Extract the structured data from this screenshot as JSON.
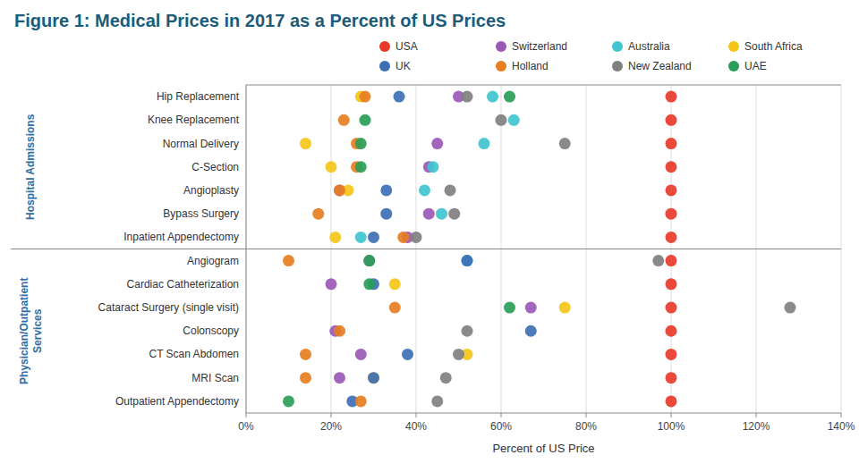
{
  "chart_data": {
    "type": "dot",
    "title": "Figure 1: Medical Prices in 2017 as a Percent of US Prices",
    "x_label": "Percent of US Price",
    "categories": [
      "Hip Replacement",
      "Knee Replacement",
      "Normal Delivery",
      "C-Section",
      "Angioplasty",
      "Bypass Surgery",
      "Inpatient Appendectomy",
      "Angiogram",
      "Cardiac Catheterization",
      "Cataract Surgery (single visit)",
      "Colonscopy",
      "CT Scan Abdomen",
      "MRI Scan",
      "Outpatient Appendectomy"
    ],
    "groups": [
      {
        "label": "Hospital Admissions",
        "categories": [
          "Hip Replacement",
          "Knee Replacement",
          "Normal Delivery",
          "C-Section",
          "Angioplasty",
          "Bypass Surgery",
          "Inpatient Appendectomy"
        ]
      },
      {
        "label": "Physician/Outpatient\nServices",
        "categories": [
          "Angiogram",
          "Cardiac Catheterization",
          "Cataract Surgery (single visit)",
          "Colonscopy",
          "CT Scan Abdomen",
          "MRI Scan",
          "Outpatient Appendectomy"
        ]
      }
    ],
    "series": [
      {
        "name": "USA",
        "color": "#e8392a",
        "values": [
          1.0,
          1.0,
          1.0,
          1.0,
          1.0,
          1.0,
          1.0,
          1.0,
          1.0,
          1.0,
          1.0,
          1.0,
          1.0,
          1.0
        ]
      },
      {
        "name": "Switzerland",
        "color": "#9b59b6",
        "values": [
          0.5,
          null,
          0.45,
          0.43,
          0.22,
          0.43,
          0.38,
          0.29,
          0.2,
          0.67,
          0.21,
          0.27,
          0.22,
          null
        ]
      },
      {
        "name": "Australia",
        "color": "#40c4d0",
        "values": [
          0.58,
          0.63,
          0.56,
          0.44,
          0.42,
          0.46,
          0.27,
          0.52,
          null,
          null,
          null,
          null,
          null,
          null
        ]
      },
      {
        "name": "South Africa",
        "color": "#f5c518",
        "values": [
          0.27,
          null,
          0.14,
          0.2,
          0.24,
          null,
          0.21,
          null,
          0.35,
          0.75,
          null,
          0.52,
          0.3,
          null
        ]
      },
      {
        "name": "UK",
        "color": "#3d6fb5",
        "values": [
          0.36,
          null,
          null,
          null,
          0.33,
          0.33,
          0.3,
          0.52,
          0.3,
          null,
          0.67,
          0.38,
          0.3,
          0.25
        ]
      },
      {
        "name": "Holland",
        "color": "#e67e22",
        "values": [
          0.28,
          0.23,
          0.26,
          0.26,
          0.22,
          0.17,
          0.37,
          0.1,
          null,
          0.35,
          0.22,
          0.14,
          0.14,
          0.27
        ]
      },
      {
        "name": "New Zealand",
        "color": "#808080",
        "values": [
          0.52,
          0.6,
          0.75,
          null,
          0.48,
          0.49,
          0.4,
          0.97,
          null,
          1.28,
          0.52,
          0.5,
          0.47,
          0.45
        ]
      },
      {
        "name": "UAE",
        "color": "#2a9d57",
        "values": [
          0.62,
          0.28,
          0.27,
          0.27,
          null,
          null,
          null,
          0.29,
          0.29,
          0.62,
          null,
          null,
          null,
          0.1
        ]
      }
    ],
    "xlim": [
      0,
      1.4
    ],
    "xticks": [
      {
        "value": 0.0,
        "label": "0%"
      },
      {
        "value": 0.2,
        "label": "20%"
      },
      {
        "value": 0.4,
        "label": "40%"
      },
      {
        "value": 0.6,
        "label": "60%"
      },
      {
        "value": 0.8,
        "label": "80%"
      },
      {
        "value": 1.0,
        "label": "100%"
      },
      {
        "value": 1.2,
        "label": "120%"
      },
      {
        "value": 1.4,
        "label": "140%"
      }
    ],
    "grid": true,
    "legend": "top-right",
    "marker": "circle"
  }
}
